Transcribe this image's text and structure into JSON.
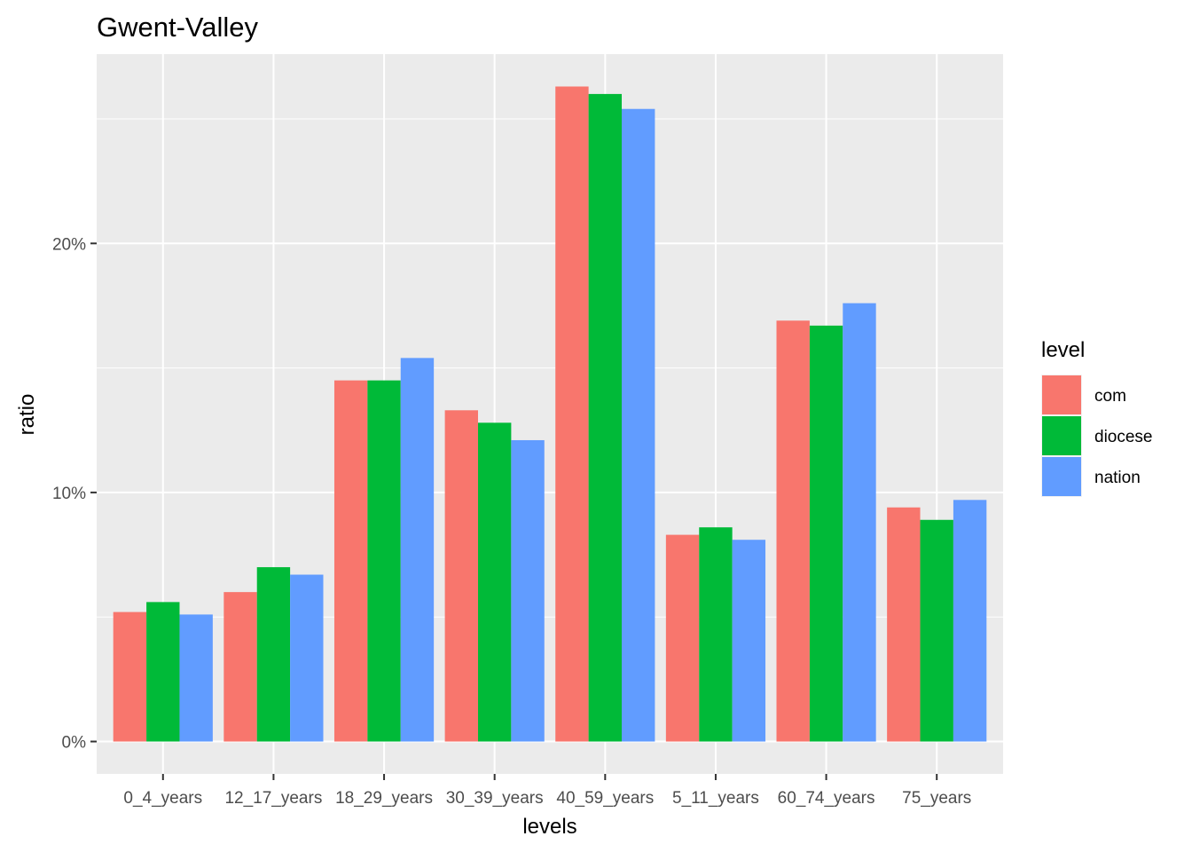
{
  "chart_data": {
    "type": "bar",
    "title": "Gwent-Valley",
    "xlabel": "levels",
    "ylabel": "ratio",
    "categories": [
      "0_4_years",
      "12_17_years",
      "18_29_years",
      "30_39_years",
      "40_59_years",
      "5_11_years",
      "60_74_years",
      "75_years"
    ],
    "series": [
      {
        "name": "com",
        "color": "#F8766D",
        "values": [
          5.2,
          6.0,
          14.5,
          13.3,
          26.3,
          8.3,
          16.9,
          9.4
        ]
      },
      {
        "name": "diocese",
        "color": "#00BA38",
        "values": [
          5.6,
          7.0,
          14.5,
          12.8,
          26.0,
          8.6,
          16.7,
          8.9
        ]
      },
      {
        "name": "nation",
        "color": "#619CFF",
        "values": [
          5.1,
          6.7,
          15.4,
          12.1,
          25.4,
          8.1,
          17.6,
          9.7
        ]
      }
    ],
    "yticks": [
      0,
      10,
      20
    ],
    "ytick_labels": [
      "0%",
      "10%",
      "20%"
    ],
    "ylim": [
      -1.3,
      27.6
    ],
    "legend": {
      "title": "level",
      "position": "right"
    },
    "grid": true,
    "panel_color": "#EBEBEB",
    "grid_color": "#FFFFFF"
  }
}
